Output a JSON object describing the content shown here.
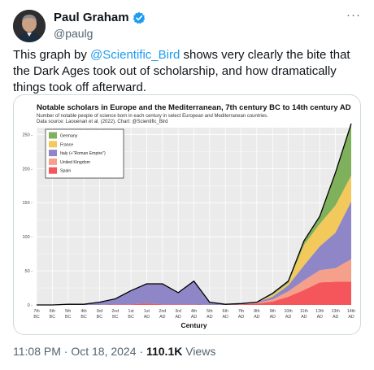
{
  "author": {
    "display_name": "Paul Graham",
    "handle": "@paulg"
  },
  "more_label": "···",
  "tweet": {
    "text_before": "This graph by ",
    "mention": "@Scientific_Bird",
    "text_after": " shows very clearly the bite that the Dark Ages took out of scholarship, and how dramatically things took off afterward."
  },
  "meta": {
    "time": "11:08 PM",
    "sep1": " · ",
    "date": "Oct 18, 2024",
    "sep2": " · ",
    "views_count": "110.1K",
    "views_label": " Views"
  },
  "colors": {
    "accent": "#1d9bf0",
    "germany": "#7fb05c",
    "france": "#f3c95c",
    "italy": "#8f86c8",
    "uk": "#f5a08a",
    "spain": "#f5565b"
  },
  "chart_data": {
    "type": "area",
    "title": "Notable scholars in Europe and the Mediterranean, 7th century BC to 14th century AD",
    "subtitle": "Number of notable people of science born in each century in select European and Mediterranean countries.",
    "source": "Data source: Laouenan et al. (2022). Chart: @Scientific_Bird",
    "xlabel": "Century",
    "ylabel": "",
    "ylim": [
      0,
      260
    ],
    "yticks": [
      "0",
      "50",
      "100",
      "150",
      "200",
      "250"
    ],
    "grid": true,
    "legend_position": "top-left",
    "categories": [
      [
        "7th",
        "BC"
      ],
      [
        "6th",
        "BC"
      ],
      [
        "5th",
        "BC"
      ],
      [
        "4th",
        "BC"
      ],
      [
        "3rd",
        "BC"
      ],
      [
        "2nd",
        "BC"
      ],
      [
        "1st",
        "BC"
      ],
      [
        "1st",
        "AD"
      ],
      [
        "2nd",
        "AD"
      ],
      [
        "3rd",
        "AD"
      ],
      [
        "4th",
        "AD"
      ],
      [
        "5th",
        "AD"
      ],
      [
        "6th",
        "AD"
      ],
      [
        "7th",
        "AD"
      ],
      [
        "8th",
        "AD"
      ],
      [
        "9th",
        "AD"
      ],
      [
        "10th",
        "AD"
      ],
      [
        "11th",
        "AD"
      ],
      [
        "12th",
        "AD"
      ],
      [
        "13th",
        "AD"
      ],
      [
        "14th",
        "AD"
      ]
    ],
    "series": [
      {
        "name": "Spain",
        "values": [
          0,
          0,
          0,
          0,
          0,
          1,
          1,
          2,
          1,
          1,
          1,
          0,
          0,
          1,
          2,
          5,
          12,
          22,
          33,
          34,
          34
        ]
      },
      {
        "name": "United Kingdom",
        "values": [
          0,
          0,
          0,
          0,
          0,
          0,
          0,
          0,
          0,
          0,
          0,
          0,
          0,
          0,
          1,
          3,
          8,
          14,
          18,
          20,
          33
        ]
      },
      {
        "name": "Italy (+\"Roman Empire\")",
        "values": [
          0,
          0,
          1,
          1,
          4,
          8,
          20,
          29,
          30,
          17,
          34,
          4,
          1,
          1,
          1,
          4,
          9,
          22,
          35,
          52,
          85
        ]
      },
      {
        "name": "France",
        "values": [
          0,
          0,
          0,
          0,
          0,
          0,
          0,
          0,
          0,
          0,
          0,
          0,
          0,
          0,
          0,
          3,
          3,
          30,
          33,
          40,
          38
        ]
      },
      {
        "name": "Germany",
        "values": [
          0,
          0,
          0,
          0,
          0,
          0,
          0,
          0,
          0,
          0,
          0,
          0,
          0,
          0,
          0,
          2,
          3,
          6,
          11,
          48,
          76
        ]
      }
    ]
  }
}
